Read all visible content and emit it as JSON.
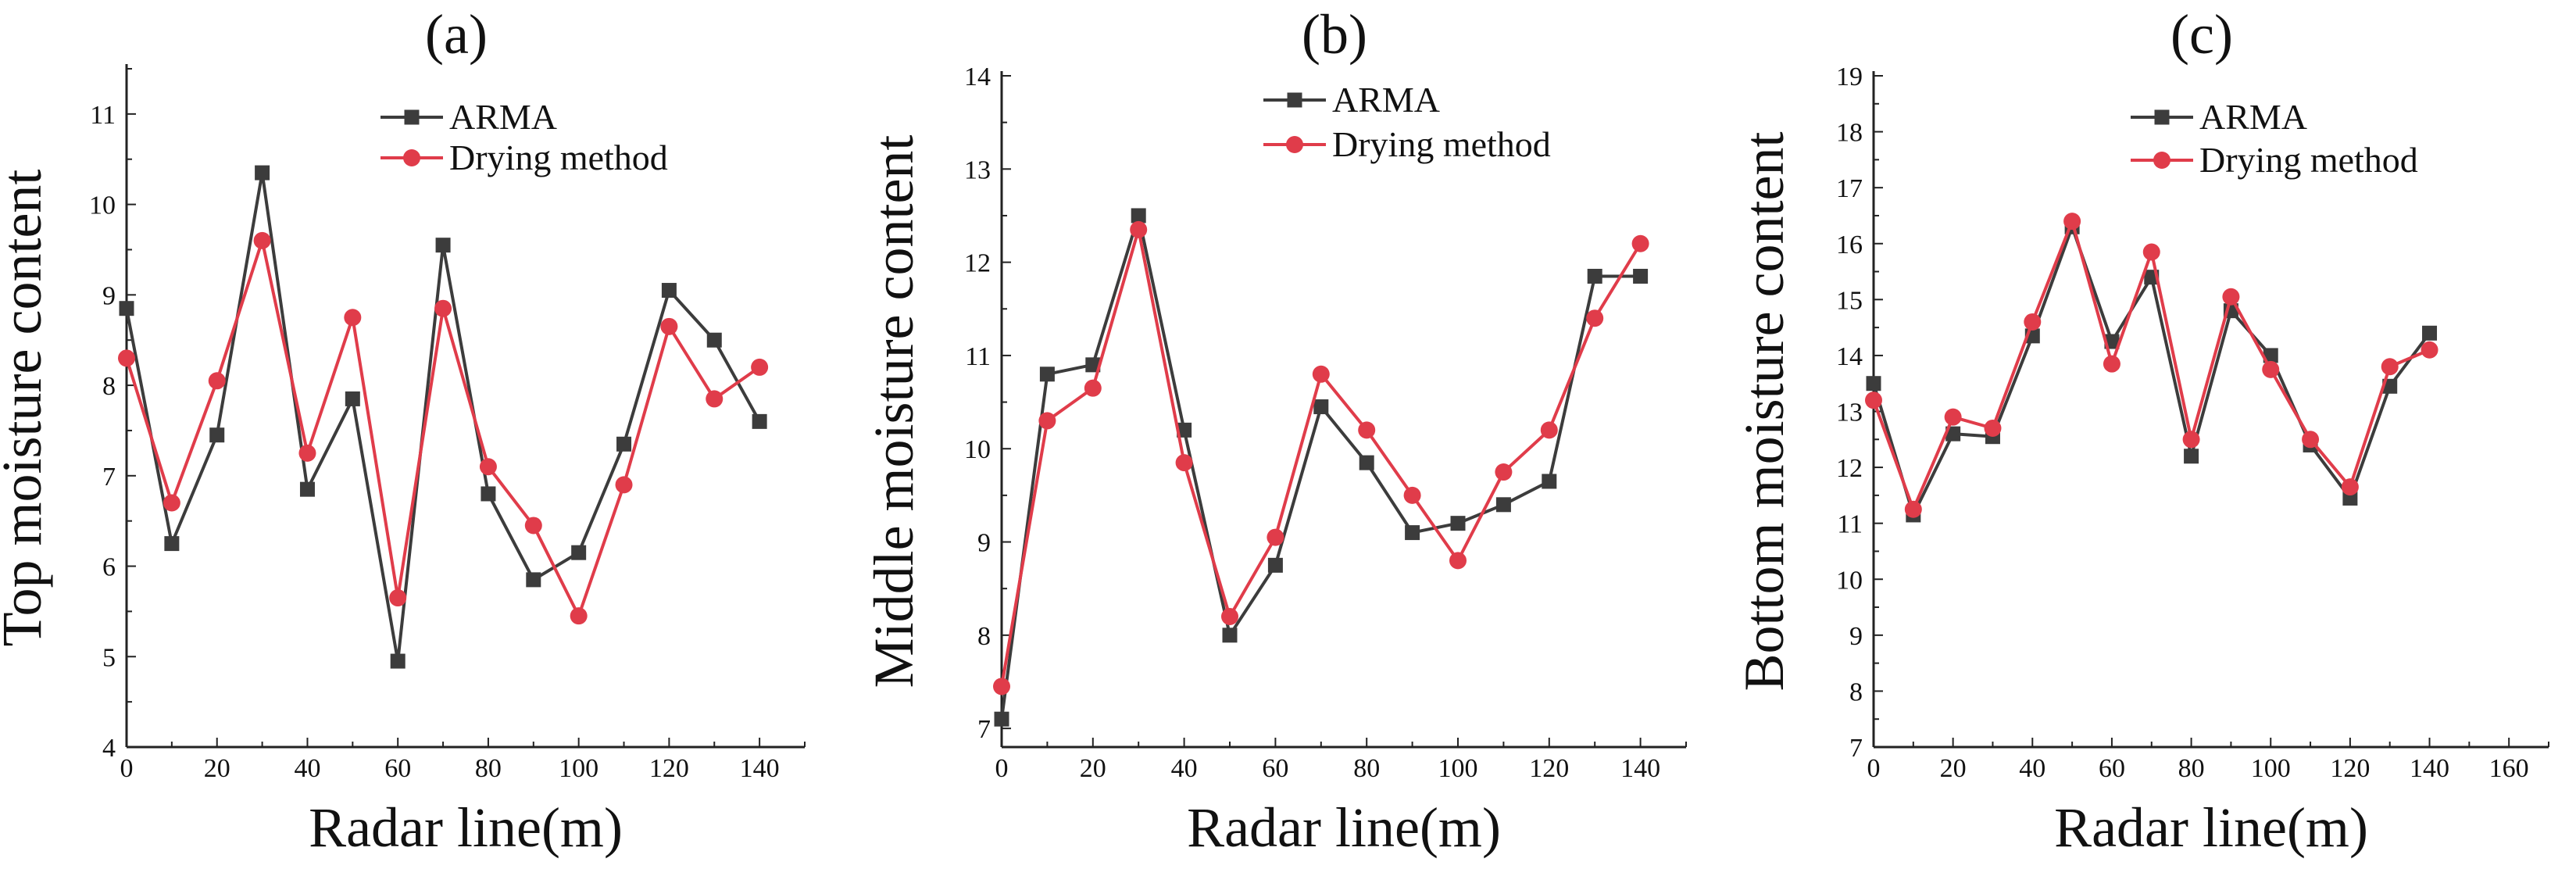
{
  "figure": {
    "style": {
      "arma_color": "#3c3c3c",
      "drying_color": "#e03c4a",
      "axis_color": "#222222"
    }
  },
  "chart_data": [
    {
      "type": "line",
      "panel_label": "(a)",
      "title": "(a)",
      "xlabel": "Radar line(m)",
      "ylabel": "Top moisture content",
      "xlim": [
        0,
        150
      ],
      "ylim": [
        4,
        11.5
      ],
      "xticks": [
        0,
        20,
        40,
        60,
        80,
        100,
        120,
        140
      ],
      "yticks": [
        4,
        5,
        6,
        7,
        8,
        9,
        10,
        11
      ],
      "legend": {
        "position": "top-right",
        "entries": [
          "ARMA",
          "Drying method"
        ]
      },
      "x": [
        0,
        10,
        20,
        30,
        40,
        50,
        60,
        70,
        80,
        90,
        100,
        110,
        120,
        130,
        140
      ],
      "series": [
        {
          "name": "ARMA",
          "marker": "square",
          "values": [
            8.85,
            6.25,
            7.45,
            10.35,
            6.85,
            7.85,
            4.95,
            9.55,
            6.8,
            5.85,
            6.15,
            7.35,
            9.05,
            8.5,
            7.6
          ]
        },
        {
          "name": "Drying method",
          "marker": "circle",
          "values": [
            8.3,
            6.7,
            8.05,
            9.6,
            7.25,
            8.75,
            5.65,
            8.85,
            7.1,
            6.45,
            5.45,
            6.9,
            8.65,
            7.85,
            8.2
          ]
        }
      ]
    },
    {
      "type": "line",
      "panel_label": "(b)",
      "title": "(b)",
      "xlabel": "Radar line(m)",
      "ylabel": "Middle moisture content",
      "xlim": [
        0,
        150
      ],
      "ylim": [
        6.8,
        14
      ],
      "xticks": [
        0,
        20,
        40,
        60,
        80,
        100,
        120,
        140
      ],
      "yticks": [
        7,
        8,
        9,
        10,
        11,
        12,
        13,
        14
      ],
      "legend": {
        "position": "top-right",
        "entries": [
          "ARMA",
          "Drying method"
        ]
      },
      "x": [
        0,
        10,
        20,
        30,
        40,
        50,
        60,
        70,
        80,
        90,
        100,
        110,
        120,
        130,
        140
      ],
      "series": [
        {
          "name": "ARMA",
          "marker": "square",
          "values": [
            7.1,
            10.8,
            10.9,
            12.5,
            10.2,
            8.0,
            8.75,
            10.45,
            9.85,
            9.1,
            9.2,
            9.4,
            9.65,
            11.85,
            11.85
          ]
        },
        {
          "name": "Drying method",
          "marker": "circle",
          "values": [
            7.45,
            10.3,
            10.65,
            12.35,
            9.85,
            8.2,
            9.05,
            10.8,
            10.2,
            9.5,
            8.8,
            9.75,
            10.2,
            11.4,
            12.2
          ]
        }
      ]
    },
    {
      "type": "line",
      "panel_label": "(c)",
      "title": "(c)",
      "xlabel": "Radar line(m)",
      "ylabel": "Bottom moisture content",
      "xlim": [
        0,
        170
      ],
      "ylim": [
        7,
        19
      ],
      "xticks": [
        0,
        20,
        40,
        60,
        80,
        100,
        120,
        140,
        160
      ],
      "yticks": [
        7,
        8,
        9,
        10,
        11,
        12,
        13,
        14,
        15,
        16,
        17,
        18,
        19
      ],
      "legend": {
        "position": "top-right",
        "entries": [
          "ARMA",
          "Drying method"
        ]
      },
      "x": [
        0,
        10,
        20,
        30,
        40,
        50,
        60,
        70,
        80,
        90,
        100,
        110,
        120,
        130,
        140
      ],
      "series": [
        {
          "name": "ARMA",
          "marker": "square",
          "values": [
            13.5,
            11.15,
            12.6,
            12.55,
            14.35,
            16.3,
            14.25,
            15.4,
            12.2,
            14.8,
            14.0,
            12.4,
            11.45,
            13.45,
            14.4
          ]
        },
        {
          "name": "Drying method",
          "marker": "circle",
          "values": [
            13.2,
            11.25,
            12.9,
            12.7,
            14.6,
            16.4,
            13.85,
            15.85,
            12.5,
            15.05,
            13.75,
            12.5,
            11.65,
            13.8,
            14.1
          ]
        }
      ]
    }
  ]
}
